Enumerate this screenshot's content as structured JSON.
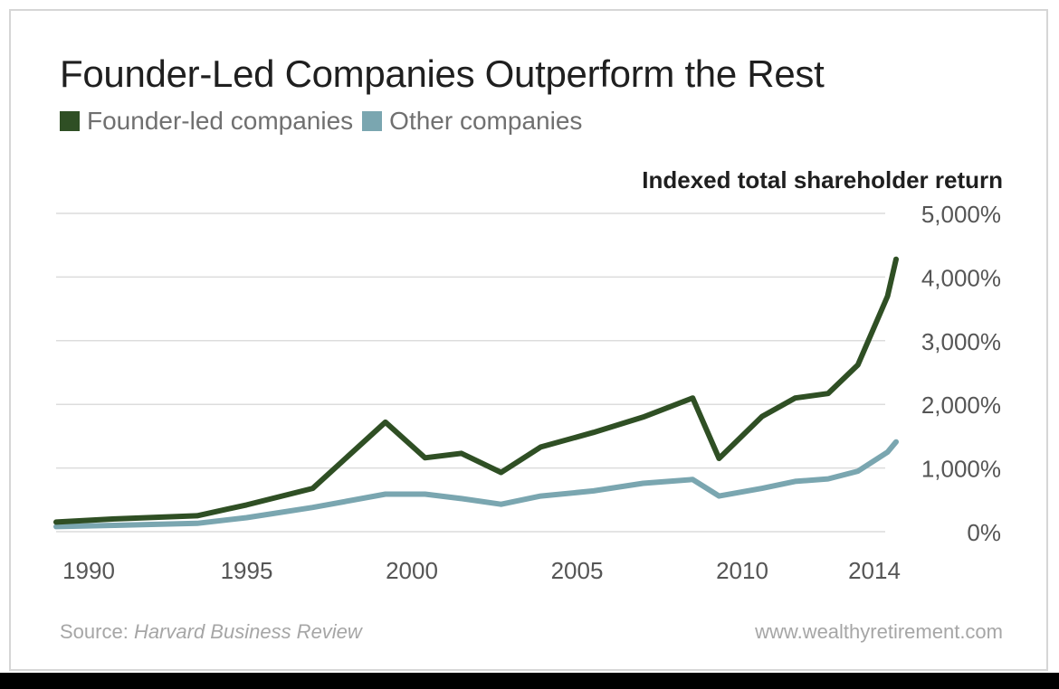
{
  "title": "Founder-Led Companies Outperform the Rest",
  "legend": [
    {
      "label": "Founder-led companies",
      "color": "#2f4f24"
    },
    {
      "label": "Other companies",
      "color": "#7aa6b0"
    }
  ],
  "source": {
    "prefix": "Source: ",
    "name": "Harvard Business Review"
  },
  "website": "www.wealthyretirement.com",
  "colors": {
    "grid": "#dcdcdc",
    "founder": "#2f4f24",
    "other": "#7aa6b0"
  },
  "chart_data": {
    "type": "line",
    "title": "Founder-Led Companies Outperform the Rest",
    "xlabel": "",
    "ylabel": "Indexed total shareholder return",
    "ylim": [
      0,
      5000
    ],
    "xlim": [
      1990,
      2014.5
    ],
    "grid": true,
    "legend_position": "top-left",
    "y_ticks": [
      "0%",
      "1,000%",
      "2,000%",
      "3,000%",
      "4,000%",
      "5,000%"
    ],
    "y_tick_values": [
      0,
      1000,
      2000,
      3000,
      4000,
      5000
    ],
    "x_ticks": [
      "1990",
      "1995",
      "2000",
      "2005",
      "2010",
      "2014"
    ],
    "x_tick_values": [
      1990,
      1995,
      2000,
      2005,
      2010,
      2014
    ],
    "series": [
      {
        "name": "Founder-led companies",
        "color": "#2f4f24",
        "x": [
          1988.8,
          1991,
          1993.5,
          1995,
          1997,
          1999.2,
          2000.4,
          2001.5,
          2002.7,
          2003.9,
          2005.5,
          2007,
          2008.5,
          2009.3,
          2010.6,
          2011.6,
          2012.6,
          2013.5,
          2014.4,
          2015.2
        ],
        "values": [
          150,
          200,
          250,
          420,
          680,
          1720,
          1160,
          1230,
          930,
          1330,
          1560,
          1800,
          2100,
          1150,
          1810,
          2100,
          2170,
          2620,
          3700,
          4280
        ]
      },
      {
        "name": "Other companies",
        "color": "#7aa6b0",
        "x": [
          1988.8,
          1991,
          1993.5,
          1995,
          1997,
          1999.2,
          2000.4,
          2001.5,
          2002.7,
          2003.9,
          2005.5,
          2007,
          2008.5,
          2009.3,
          2010.6,
          2011.6,
          2012.6,
          2013.5,
          2014.4,
          2015.2
        ],
        "values": [
          80,
          100,
          130,
          220,
          380,
          590,
          590,
          520,
          430,
          560,
          640,
          760,
          820,
          560,
          680,
          790,
          830,
          950,
          1250,
          1410
        ]
      }
    ]
  }
}
